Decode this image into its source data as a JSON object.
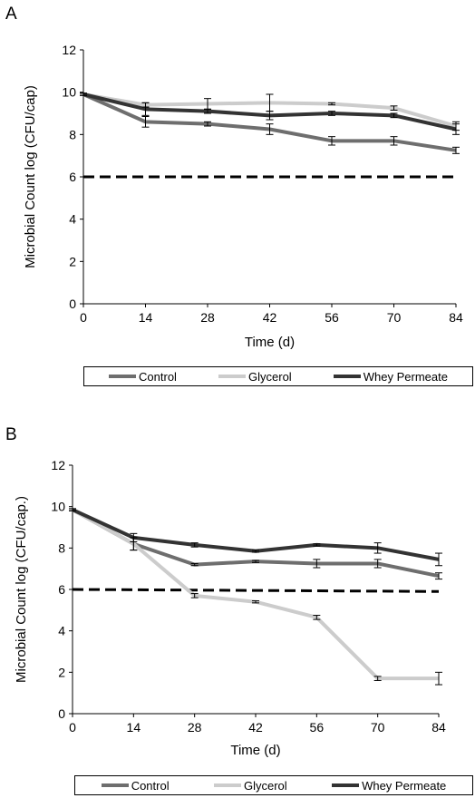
{
  "chart_data": [
    {
      "panel": "A",
      "type": "line",
      "x": [
        0,
        14,
        28,
        42,
        56,
        70,
        84
      ],
      "xlabel": "Time (d)",
      "ylabel": "Microbial Count log (CFU/cap)",
      "ylim": [
        0,
        12
      ],
      "yticks": [
        0,
        2,
        4,
        6,
        8,
        10,
        12
      ],
      "grid": false,
      "legend_position": "bottom",
      "reference_line": {
        "y": 6,
        "style": "dashed",
        "color": "#000000"
      },
      "series": [
        {
          "name": "Control",
          "color": "#6e6e6e",
          "values": [
            9.9,
            8.6,
            8.5,
            8.25,
            7.7,
            7.7,
            7.25
          ],
          "errors": [
            0.05,
            0.25,
            0.1,
            0.25,
            0.2,
            0.2,
            0.15
          ]
        },
        {
          "name": "Glycerol",
          "color": "#cccccc",
          "values": [
            9.9,
            9.4,
            9.45,
            9.5,
            9.45,
            9.25,
            8.4
          ],
          "errors": [
            0.05,
            0.1,
            0.25,
            0.4,
            0.05,
            0.1,
            0.2
          ]
        },
        {
          "name": "Whey Permeate",
          "color": "#333333",
          "values": [
            9.9,
            9.2,
            9.1,
            8.9,
            9.0,
            8.9,
            8.25
          ],
          "errors": [
            0.05,
            0.3,
            0.1,
            0.2,
            0.1,
            0.1,
            0.25
          ]
        }
      ]
    },
    {
      "panel": "B",
      "type": "line",
      "x": [
        0,
        14,
        28,
        42,
        56,
        70,
        84
      ],
      "xlabel": "Time (d)",
      "ylabel": "Microbial Count log (CFU/cap.)",
      "ylim": [
        0,
        12
      ],
      "yticks": [
        0,
        2,
        4,
        6,
        8,
        10,
        12
      ],
      "grid": false,
      "legend_position": "bottom",
      "reference_line": {
        "y": [
          6.0,
          5.9
        ],
        "style": "dashed",
        "color": "#000000"
      },
      "series": [
        {
          "name": "Control",
          "color": "#6e6e6e",
          "values": [
            9.85,
            8.2,
            7.2,
            7.35,
            7.25,
            7.25,
            6.65
          ],
          "errors": [
            0.05,
            0.3,
            0.05,
            0.05,
            0.2,
            0.2,
            0.15
          ]
        },
        {
          "name": "Glycerol",
          "color": "#cccccc",
          "values": [
            9.85,
            8.2,
            5.7,
            5.4,
            4.65,
            1.7,
            1.7
          ],
          "errors": [
            0.05,
            0.3,
            0.1,
            0.05,
            0.1,
            0.1,
            0.3
          ]
        },
        {
          "name": "Whey Permeate",
          "color": "#333333",
          "values": [
            9.85,
            8.5,
            8.15,
            7.85,
            8.15,
            8.0,
            7.45
          ],
          "errors": [
            0.05,
            0.2,
            0.1,
            0.05,
            0.05,
            0.25,
            0.3
          ]
        }
      ]
    }
  ]
}
